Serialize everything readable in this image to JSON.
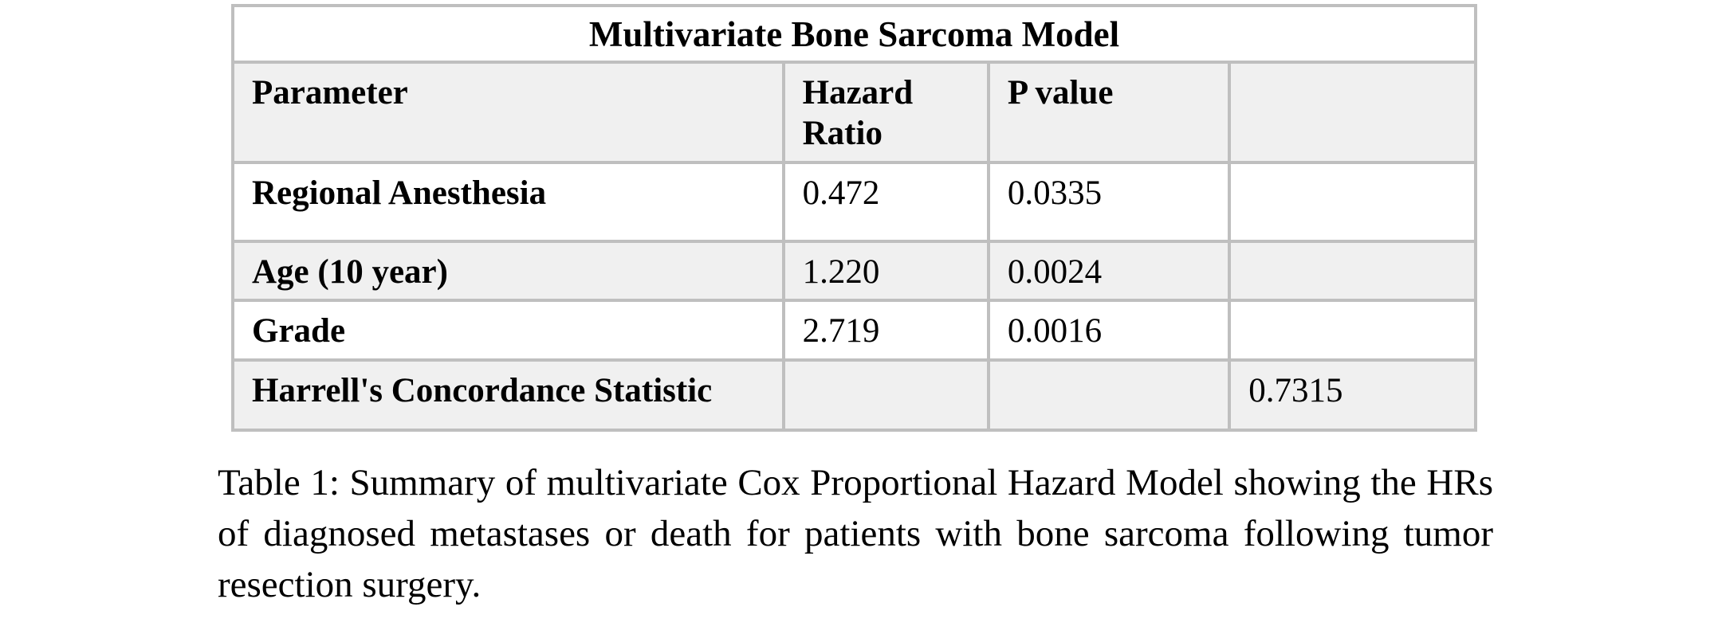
{
  "document": {
    "table": {
      "title": "Multivariate Bone Sarcoma Model",
      "headers": {
        "parameter": "Parameter",
        "hazard_ratio": "Hazard Ratio",
        "p_value": "P value",
        "statistic": ""
      },
      "rows": [
        {
          "parameter": "Regional Anesthesia",
          "hazard_ratio": "0.472",
          "p_value": "0.0335",
          "statistic": ""
        },
        {
          "parameter": "Age (10 year)",
          "hazard_ratio": "1.220",
          "p_value": "0.0024",
          "statistic": ""
        },
        {
          "parameter": "Grade",
          "hazard_ratio": "2.719",
          "p_value": "0.0016",
          "statistic": ""
        },
        {
          "parameter": "Harrell's Concordance Statistic",
          "hazard_ratio": "",
          "p_value": "",
          "statistic": "0.7315"
        }
      ]
    },
    "caption": "Table 1: Summary of multivariate Cox Proportional Hazard Model showing the HRs of diagnosed metastases or death for patients with bone sarcoma following tumor resection surgery.",
    "colors": {
      "row_shade": "#f0f0f0",
      "border": "#bfbfbf",
      "text": "#000000",
      "background": "#ffffff"
    }
  }
}
